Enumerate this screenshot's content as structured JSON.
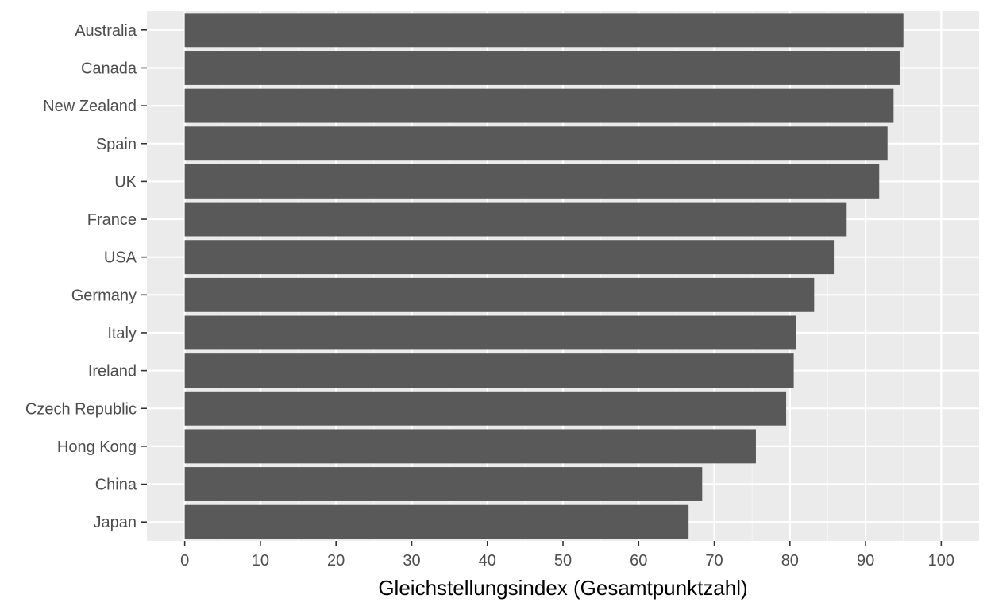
{
  "chart_data": {
    "type": "bar",
    "orientation": "horizontal",
    "title": "",
    "xlabel": "Gleichstellungsindex (Gesamtpunktzahl)",
    "ylabel": "",
    "xlim": [
      -5,
      105
    ],
    "xticks": [
      0,
      10,
      20,
      30,
      40,
      50,
      60,
      70,
      80,
      90,
      100
    ],
    "grid": true,
    "legend": "none",
    "categories": [
      "Australia",
      "Canada",
      "New Zealand",
      "Spain",
      "UK",
      "France",
      "USA",
      "Germany",
      "Italy",
      "Ireland",
      "Czech Republic",
      "Hong Kong",
      "China",
      "Japan"
    ],
    "values": [
      95.0,
      94.5,
      93.7,
      92.9,
      91.8,
      87.5,
      85.8,
      83.2,
      80.8,
      80.5,
      79.5,
      75.5,
      68.4,
      66.6
    ],
    "colors": {
      "bar": "#595959",
      "panel_background": "#ebebeb",
      "grid_major": "#ffffff",
      "grid_minor": "#f5f5f5",
      "tick_text": "#4d4d4d",
      "axis_title": "#000000"
    }
  }
}
